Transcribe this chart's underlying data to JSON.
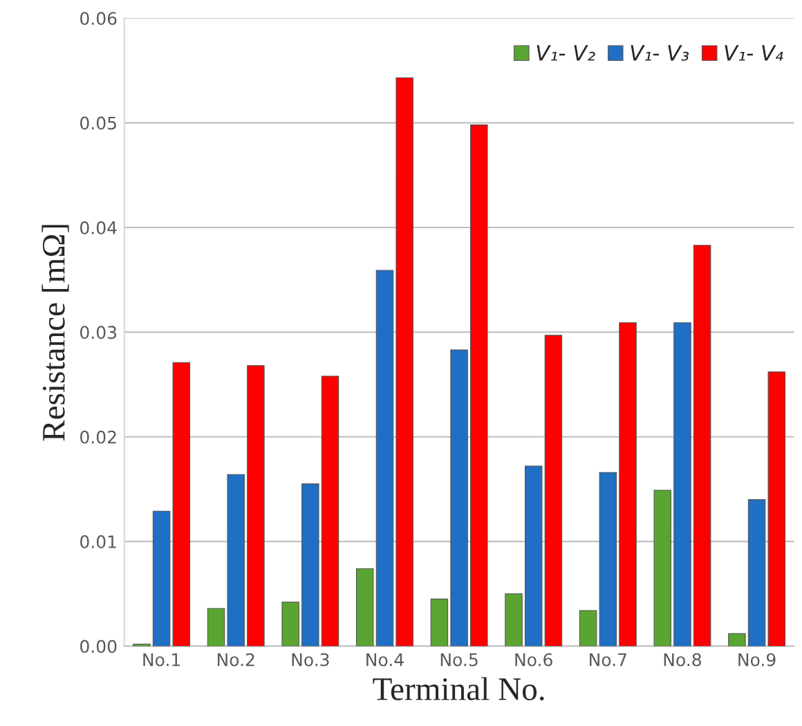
{
  "chart_data": {
    "type": "bar",
    "xlabel": "Terminal No.",
    "ylabel": "Resistance [mΩ]",
    "categories": [
      "No.1",
      "No.2",
      "No.3",
      "No.4",
      "No.5",
      "No.6",
      "No.7",
      "No.8",
      "No.9"
    ],
    "series": [
      {
        "name": "V₁- V₂",
        "color": "#5aa532",
        "values": [
          0.0002,
          0.0036,
          0.0042,
          0.0074,
          0.0045,
          0.005,
          0.0034,
          0.0149,
          0.0012
        ]
      },
      {
        "name": "V₁- V₃",
        "color": "#1f6fc4",
        "values": [
          0.0129,
          0.0164,
          0.0155,
          0.0359,
          0.0283,
          0.0172,
          0.0166,
          0.0309,
          0.014
        ]
      },
      {
        "name": "V₁- V₄",
        "color": "#ff0000",
        "values": [
          0.0271,
          0.0268,
          0.0258,
          0.0543,
          0.0498,
          0.0297,
          0.0309,
          0.0383,
          0.0262
        ]
      }
    ],
    "ylim": [
      0,
      0.06
    ],
    "yticks": [
      {
        "value": 0,
        "label": "0.00"
      },
      {
        "value": 0.01,
        "label": "0.01"
      },
      {
        "value": 0.02,
        "label": "0.02"
      },
      {
        "value": 0.03,
        "label": "0.03"
      },
      {
        "value": 0.04,
        "label": "0.04"
      },
      {
        "value": 0.05,
        "label": "0.05"
      },
      {
        "value": 0.06,
        "label": "0.06"
      }
    ],
    "grid": "y",
    "legend": "top right"
  }
}
